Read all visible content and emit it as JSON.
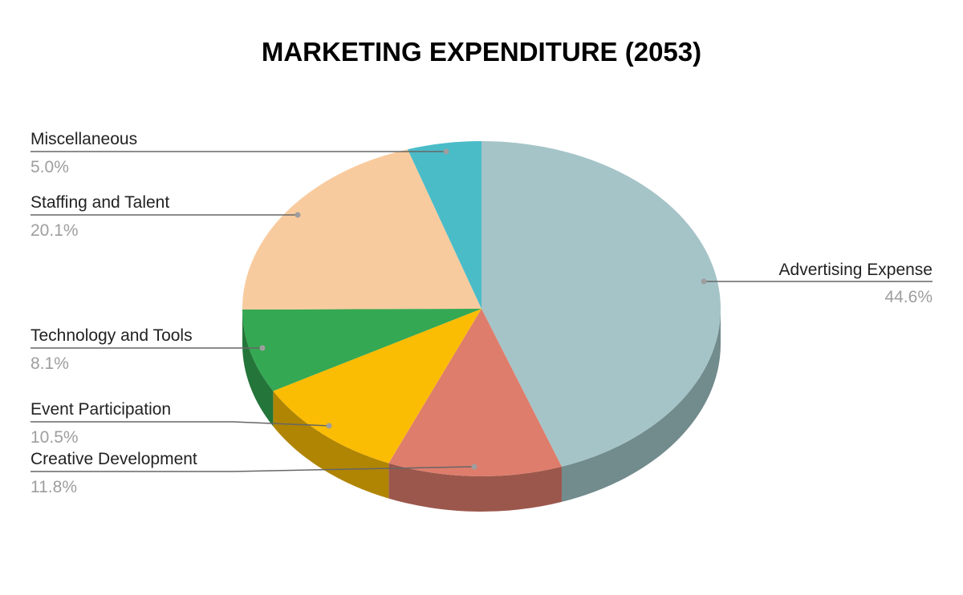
{
  "chart_data": {
    "type": "pie",
    "title": "MARKETING EXPENDITURE (2053)",
    "slices": [
      {
        "label": "Advertising Expense",
        "value": 44.6,
        "display": "44.6%",
        "color": "#a5c4c8",
        "side_color": "#728b8d"
      },
      {
        "label": "Creative Development",
        "value": 11.8,
        "display": "11.8%",
        "color": "#de7d6c",
        "side_color": "#9c574c"
      },
      {
        "label": "Event Participation",
        "value": 10.5,
        "display": "10.5%",
        "color": "#fbbc04",
        "side_color": "#b08504"
      },
      {
        "label": "Technology and Tools",
        "value": 8.1,
        "display": "8.1%",
        "color": "#34a853",
        "side_color": "#24753a"
      },
      {
        "label": "Staffing and Talent",
        "value": 20.1,
        "display": "20.1%",
        "color": "#f8cb9e",
        "side_color": "#ae8f6f"
      },
      {
        "label": "Miscellaneous",
        "value": 5.0,
        "display": "5.0%",
        "color": "#4abcc8",
        "side_color": "#33848c"
      }
    ],
    "legend": "none",
    "three_d": true,
    "label_style": "callout lines with name and percentage"
  }
}
